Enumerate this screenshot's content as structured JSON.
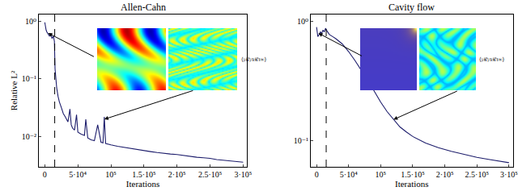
{
  "chart_data": [
    {
      "type": "line",
      "title": "Allen-Cahn",
      "x_label": "Iterations",
      "y_label": "Relative L²",
      "log": "y",
      "grid": false,
      "x": [
        0,
        1000,
        2000,
        3000,
        5000,
        7000,
        9000,
        11000,
        13000,
        14500,
        15500,
        16500,
        18000,
        20000,
        22000,
        25000,
        28000,
        31000,
        35000,
        38000,
        40000,
        42000,
        45000,
        48000,
        50000,
        55000,
        60000,
        62000,
        65000,
        70000,
        75000,
        80000,
        85000,
        88000,
        90000,
        92000,
        95000,
        100000,
        110000,
        120000,
        130000,
        140000,
        150000,
        160000,
        170000,
        180000,
        190000,
        200000,
        210000,
        220000,
        230000,
        240000,
        250000,
        260000,
        270000,
        280000,
        290000,
        300000
      ],
      "series": [
        {
          "color": "#1c1c6b",
          "line_style": "solid",
          "values": [
            0.95,
            0.75,
            0.7,
            0.65,
            0.6,
            0.55,
            0.6,
            0.5,
            0.55,
            0.45,
            0.15,
            0.1,
            0.07,
            0.05,
            0.04,
            0.032,
            0.025,
            0.022,
            0.018,
            0.03,
            0.016,
            0.014,
            0.013,
            0.024,
            0.012,
            0.011,
            0.0105,
            0.02,
            0.0095,
            0.0088,
            0.0085,
            0.016,
            0.008,
            0.0078,
            0.022,
            0.0076,
            0.0074,
            0.0072,
            0.0068,
            0.0065,
            0.0062,
            0.0059,
            0.0057,
            0.0055,
            0.0053,
            0.0051,
            0.005,
            0.0049,
            0.0047,
            0.0046,
            0.0044,
            0.0043,
            0.0042,
            0.004,
            0.0039,
            0.0038,
            0.0037,
            0.0036
          ]
        }
      ],
      "vline": {
        "x": 15000,
        "line_style": "dashed",
        "color": "#000000"
      },
      "arrows": [
        {
          "x": 5000,
          "y": 0.62
        },
        {
          "x": 90000,
          "y": 0.02
        }
      ],
      "inset_label": "⟨|ℛ|/‖ℛ‖∞⟩",
      "xlim": [
        -9000,
        306000
      ],
      "xticks": [
        0,
        {
          "value": 50000,
          "label": "5·10⁴"
        },
        {
          "value": 100000,
          "label": "10⁵"
        },
        {
          "value": 150000,
          "label": "1.5·10⁵"
        },
        {
          "value": 200000,
          "label": "2·10⁵"
        },
        {
          "value": 250000,
          "label": "2.5·10⁵"
        },
        {
          "value": 300000,
          "label": "3·10⁵"
        }
      ],
      "ylim": [
        0.003,
        1.3
      ],
      "yticks": [
        {
          "value": 0.01,
          "label": "10⁻²"
        },
        {
          "value": 0.1,
          "label": "10⁻¹"
        },
        {
          "value": 1,
          "label": "10⁰"
        }
      ]
    },
    {
      "type": "line",
      "title": "Cavity flow",
      "x_label": "Iterations",
      "log": "y",
      "grid": false,
      "x": [
        0,
        2000,
        4000,
        6000,
        8000,
        10000,
        12000,
        14000,
        16000,
        18000,
        20000,
        25000,
        30000,
        40000,
        50000,
        60000,
        70000,
        80000,
        90000,
        100000,
        110000,
        120000,
        130000,
        140000,
        150000,
        170000,
        190000,
        210000,
        230000,
        250000,
        270000,
        290000,
        300000
      ],
      "series": [
        {
          "color": "#1c1c6b",
          "line_style": "solid",
          "values": [
            0.9,
            0.75,
            0.78,
            0.82,
            0.8,
            0.85,
            0.82,
            0.88,
            0.84,
            0.8,
            0.78,
            0.75,
            0.72,
            0.65,
            0.56,
            0.47,
            0.39,
            0.32,
            0.26,
            0.21,
            0.175,
            0.15,
            0.13,
            0.118,
            0.108,
            0.095,
            0.087,
            0.081,
            0.076,
            0.072,
            0.069,
            0.066,
            0.065
          ]
        }
      ],
      "vline": {
        "x": 15000,
        "line_style": "dashed",
        "color": "#000000"
      },
      "arrows": [
        {
          "x": 3000,
          "y": 0.8
        },
        {
          "x": 120000,
          "y": 0.15
        }
      ],
      "inset_label": "⟨|ℛ|/‖ℛ‖∞⟩",
      "xlim": [
        -9000,
        306000
      ],
      "xticks": [
        0,
        {
          "value": 50000,
          "label": "5·10⁴"
        },
        {
          "value": 100000,
          "label": "10⁵"
        },
        {
          "value": 150000,
          "label": "1.5·10⁵"
        },
        {
          "value": 200000,
          "label": "2·10⁵"
        },
        {
          "value": 250000,
          "label": "2.5·10⁵"
        },
        {
          "value": 300000,
          "label": "3·10⁵"
        }
      ],
      "ylim": [
        0.06,
        1.15
      ],
      "yticks": [
        {
          "value": 0.1,
          "label": "10⁻¹"
        },
        {
          "value": 1,
          "label": "10⁰"
        }
      ]
    }
  ]
}
